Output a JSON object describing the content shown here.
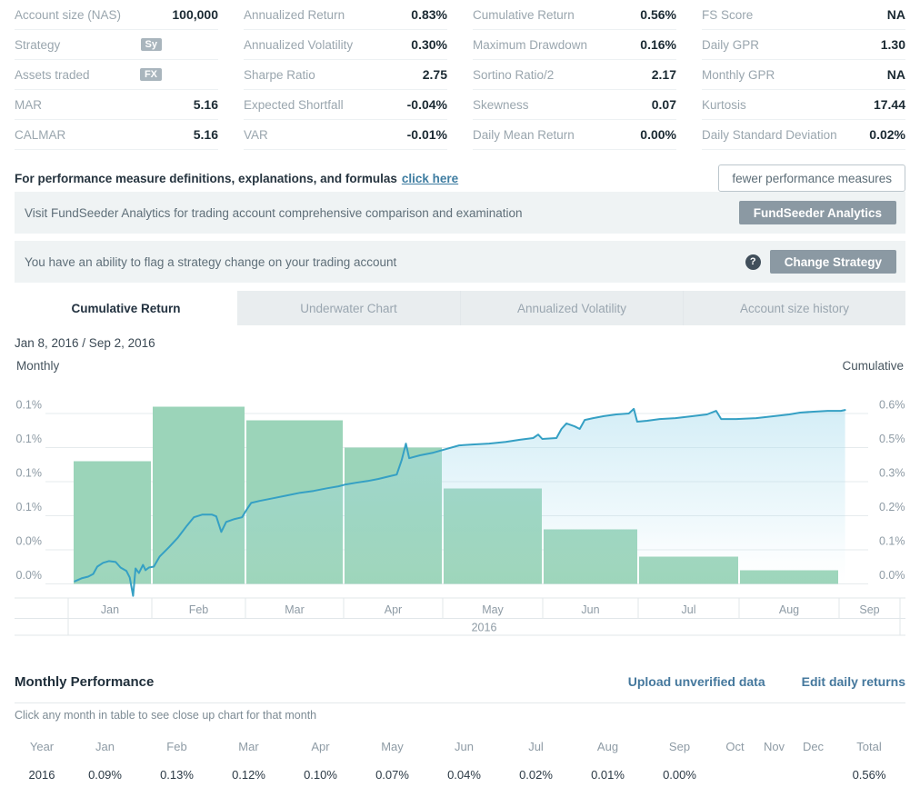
{
  "metrics": {
    "columns": [
      {
        "rows": [
          {
            "label": "Account size (NAS)",
            "value": "100,000"
          },
          {
            "label": "Strategy",
            "badge": "Sy"
          },
          {
            "label": "Assets traded",
            "badge": "FX"
          },
          {
            "label": "MAR",
            "value": "5.16"
          },
          {
            "label": "CALMAR",
            "value": "5.16"
          }
        ]
      },
      {
        "rows": [
          {
            "label": "Annualized Return",
            "value": "0.83%"
          },
          {
            "label": "Annualized Volatility",
            "value": "0.30%"
          },
          {
            "label": "Sharpe Ratio",
            "value": "2.75"
          },
          {
            "label": "Expected Shortfall",
            "value": "-0.04%"
          },
          {
            "label": "VAR",
            "value": "-0.01%"
          }
        ]
      },
      {
        "rows": [
          {
            "label": "Cumulative Return",
            "value": "0.56%"
          },
          {
            "label": "Maximum Drawdown",
            "value": "0.16%"
          },
          {
            "label": "Sortino Ratio/2",
            "value": "2.17"
          },
          {
            "label": "Skewness",
            "value": "0.07"
          },
          {
            "label": "Daily Mean Return",
            "value": "0.00%"
          }
        ]
      },
      {
        "rows": [
          {
            "label": "FS Score",
            "value": "NA"
          },
          {
            "label": "Daily GPR",
            "value": "1.30"
          },
          {
            "label": "Monthly GPR",
            "value": "NA"
          },
          {
            "label": "Kurtosis",
            "value": "17.44"
          },
          {
            "label": "Daily Standard Deviation",
            "value": "0.02%"
          }
        ]
      }
    ]
  },
  "definitions": {
    "text": "For performance measure definitions, explanations, and formulas",
    "link": "click here",
    "button": "fewer performance measures"
  },
  "banners": [
    {
      "text": "Visit FundSeeder Analytics for trading account comprehensive comparison and examination",
      "button": "FundSeeder Analytics",
      "help": false
    },
    {
      "text": "You have an ability to flag a strategy change on your trading account",
      "button": "Change Strategy",
      "help": true,
      "help_glyph": "?"
    }
  ],
  "tabs": [
    {
      "label": "Cumulative Return",
      "active": true
    },
    {
      "label": "Underwater Chart",
      "active": false
    },
    {
      "label": "Annualized Volatility",
      "active": false
    },
    {
      "label": "Account size history",
      "active": false
    }
  ],
  "date_range": "Jan 8, 2016 / Sep 2, 2016",
  "chart_data": {
    "type": "bar+line",
    "title": "Cumulative Return",
    "period": "Jan 8, 2016 / Sep 2, 2016",
    "left_axis": {
      "title": "Monthly",
      "tick_labels": [
        "0.1%",
        "0.1%",
        "0.1%",
        "0.1%",
        "0.0%",
        "0.0%"
      ],
      "range_pct": [
        0,
        0.125
      ]
    },
    "right_axis": {
      "title": "Cumulative",
      "tick_labels": [
        "0.6%",
        "0.5%",
        "0.3%",
        "0.2%",
        "0.1%",
        "0.0%"
      ],
      "range_pct": [
        0,
        0.583
      ]
    },
    "months": [
      "Jan",
      "Feb",
      "Mar",
      "Apr",
      "May",
      "Jun",
      "Jul",
      "Aug",
      "Sep"
    ],
    "year_label": "2016",
    "bars_monthly_return_pct": [
      0.09,
      0.13,
      0.12,
      0.1,
      0.07,
      0.04,
      0.02,
      0.01,
      0.0
    ],
    "line_cumulative_pct": [
      [
        0.008,
        0.009
      ],
      [
        0.016,
        0.019
      ],
      [
        0.024,
        0.025
      ],
      [
        0.03,
        0.034
      ],
      [
        0.035,
        0.059
      ],
      [
        0.042,
        0.072
      ],
      [
        0.049,
        0.078
      ],
      [
        0.057,
        0.075
      ],
      [
        0.063,
        0.056
      ],
      [
        0.07,
        0.044
      ],
      [
        0.074,
        0.022
      ],
      [
        0.078,
        -0.041
      ],
      [
        0.081,
        0.053
      ],
      [
        0.085,
        0.037
      ],
      [
        0.09,
        0.065
      ],
      [
        0.093,
        0.047
      ],
      [
        0.097,
        0.056
      ],
      [
        0.103,
        0.059
      ],
      [
        0.11,
        0.094
      ],
      [
        0.121,
        0.125
      ],
      [
        0.132,
        0.159
      ],
      [
        0.143,
        0.2
      ],
      [
        0.151,
        0.228
      ],
      [
        0.161,
        0.237
      ],
      [
        0.173,
        0.237
      ],
      [
        0.178,
        0.231
      ],
      [
        0.184,
        0.178
      ],
      [
        0.19,
        0.212
      ],
      [
        0.199,
        0.221
      ],
      [
        0.209,
        0.228
      ],
      [
        0.215,
        0.256
      ],
      [
        0.22,
        0.277
      ],
      [
        0.23,
        0.284
      ],
      [
        0.246,
        0.293
      ],
      [
        0.262,
        0.302
      ],
      [
        0.279,
        0.312
      ],
      [
        0.295,
        0.318
      ],
      [
        0.311,
        0.327
      ],
      [
        0.325,
        0.334
      ],
      [
        0.333,
        0.34
      ],
      [
        0.346,
        0.346
      ],
      [
        0.36,
        0.352
      ],
      [
        0.373,
        0.359
      ],
      [
        0.386,
        0.368
      ],
      [
        0.395,
        0.374
      ],
      [
        0.401,
        0.424
      ],
      [
        0.406,
        0.48
      ],
      [
        0.41,
        0.43
      ],
      [
        0.423,
        0.44
      ],
      [
        0.439,
        0.449
      ],
      [
        0.454,
        0.461
      ],
      [
        0.47,
        0.474
      ],
      [
        0.486,
        0.477
      ],
      [
        0.506,
        0.48
      ],
      [
        0.526,
        0.486
      ],
      [
        0.543,
        0.493
      ],
      [
        0.559,
        0.499
      ],
      [
        0.565,
        0.511
      ],
      [
        0.57,
        0.496
      ],
      [
        0.587,
        0.499
      ],
      [
        0.593,
        0.53
      ],
      [
        0.599,
        0.549
      ],
      [
        0.609,
        0.539
      ],
      [
        0.615,
        0.53
      ],
      [
        0.621,
        0.561
      ],
      [
        0.631,
        0.567
      ],
      [
        0.644,
        0.574
      ],
      [
        0.659,
        0.58
      ],
      [
        0.674,
        0.583
      ],
      [
        0.68,
        0.599
      ],
      [
        0.684,
        0.555
      ],
      [
        0.696,
        0.558
      ],
      [
        0.711,
        0.564
      ],
      [
        0.73,
        0.567
      ],
      [
        0.751,
        0.574
      ],
      [
        0.768,
        0.58
      ],
      [
        0.779,
        0.592
      ],
      [
        0.785,
        0.564
      ],
      [
        0.803,
        0.564
      ],
      [
        0.827,
        0.567
      ],
      [
        0.849,
        0.574
      ],
      [
        0.867,
        0.58
      ],
      [
        0.88,
        0.586
      ],
      [
        0.894,
        0.589
      ],
      [
        0.913,
        0.592
      ],
      [
        0.929,
        0.592
      ],
      [
        0.934,
        0.595
      ]
    ],
    "colors": {
      "bar": "#9bd4b9",
      "line": "#35a0c4",
      "area_top": "#aaddee",
      "grid": "#e6ebed",
      "axis_text": "#8e9ba5",
      "axis_border": "#e2e7ea",
      "axis_title": "#47555f"
    }
  },
  "monthly_performance": {
    "title": "Monthly Performance",
    "links": [
      "Upload unverified data",
      "Edit daily returns"
    ],
    "caption": "Click any month in table to see close up chart for that month",
    "table": {
      "headers": [
        "Year",
        "Jan",
        "Feb",
        "Mar",
        "Apr",
        "May",
        "Jun",
        "Jul",
        "Aug",
        "Sep",
        "Oct",
        "Nov",
        "Dec",
        "Total"
      ],
      "rows": [
        [
          "2016",
          "0.09%",
          "0.13%",
          "0.12%",
          "0.10%",
          "0.07%",
          "0.04%",
          "0.02%",
          "0.01%",
          "0.00%",
          "",
          "",
          "",
          "0.56%"
        ]
      ]
    }
  },
  "theme": {
    "link_color": "#3f7da1",
    "banner_bg": "#eff3f4",
    "button_gray": "#8b99a3",
    "badge_gray": "#a9b5bd"
  }
}
